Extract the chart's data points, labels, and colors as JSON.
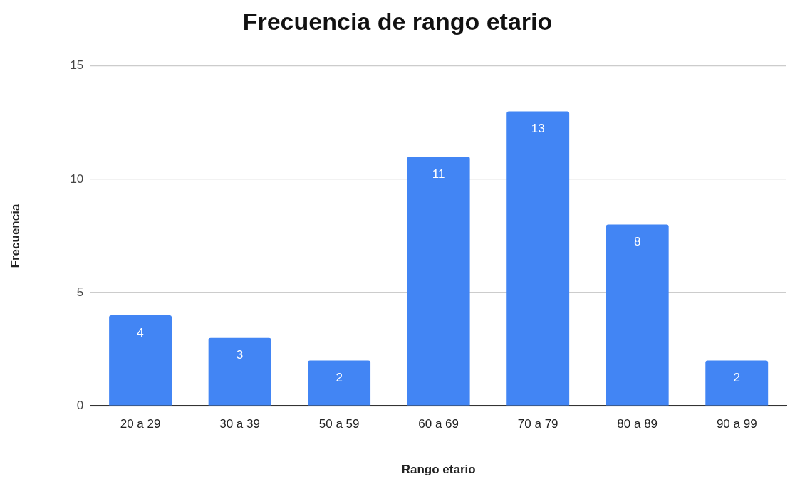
{
  "chart_data": {
    "type": "bar",
    "title": "Frecuencia de rango etario",
    "xlabel": "Rango etario",
    "ylabel": "Frecuencia",
    "categories": [
      "20 a 29",
      "30 a 39",
      "50 a 59",
      "60 a 69",
      "70 a 79",
      "80 a 89",
      "90 a 99"
    ],
    "values": [
      4,
      3,
      2,
      11,
      13,
      8,
      2
    ],
    "color": "#4285f4",
    "ylim": [
      0,
      15
    ],
    "yticks": [
      0,
      5,
      10,
      15
    ],
    "grid": "y",
    "data_labels": true
  }
}
